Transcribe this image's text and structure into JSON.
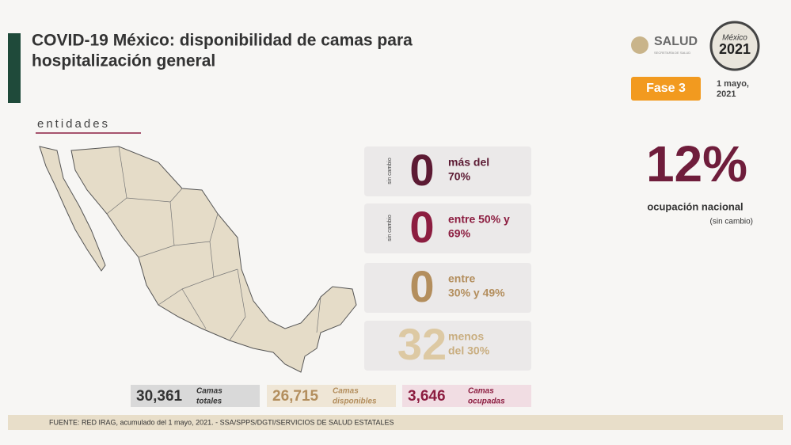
{
  "header": {
    "title_line1": "COVID-19 México: disponibilidad de camas para",
    "title_line2": "hospitalización general",
    "salud": "SALUD",
    "salud_sub": "SECRETARÍA DE SALUD",
    "logo_line1": "México",
    "logo_line2": "2021",
    "phase": "Fase 3",
    "date_line1": "1 mayo,",
    "date_line2": "2021"
  },
  "map": {
    "label": "entidades"
  },
  "cards": [
    {
      "note": "sin cambio",
      "count": "0",
      "label_line1": "más del",
      "label_line2": "70%"
    },
    {
      "note": "sin cambio",
      "count": "0",
      "label_line1": "entre 50% y",
      "label_line2": "69%"
    },
    {
      "count": "0",
      "label_line1": "entre",
      "label_line2": "30% y 49%"
    },
    {
      "count": "32",
      "label_line1": "menos",
      "label_line2": "del 30%"
    }
  ],
  "national": {
    "value": "12%",
    "label": "ocupación nacional",
    "note": "(sin cambio)"
  },
  "totals": [
    {
      "value": "30,361",
      "label_line1": "Camas",
      "label_line2": "totales"
    },
    {
      "value": "26,715",
      "label_line1": "Camas",
      "label_line2": "disponibles"
    },
    {
      "value": "3,646",
      "label_line1": "Camas",
      "label_line2": "ocupadas"
    }
  ],
  "footer": {
    "source": "FUENTE: RED IRAG, acumulado del 1 mayo, 2021. -  SSA/SPPS/DGTI/SERVICIOS DE SALUD ESTATALES"
  }
}
